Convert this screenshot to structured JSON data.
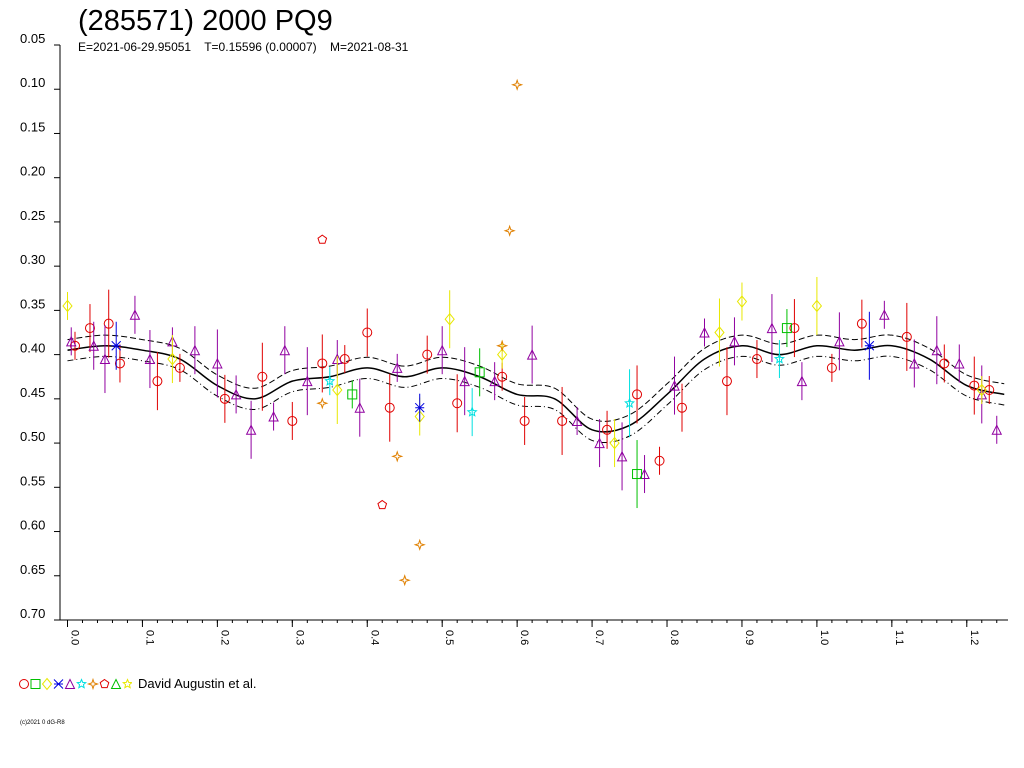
{
  "title": "(285571) 2000 PQ9",
  "subtitle": "E=2021-06-29.95051    T=0.15596 (0.00007)    M=2021-08-31",
  "legend": {
    "label": "David Augustin et al."
  },
  "copyright": "(c)2021 0 dG-R8",
  "colors": {
    "red": "#e00000",
    "green": "#00c000",
    "yellow": "#e8e800",
    "blue": "#0000e0",
    "purple": "#9000a0",
    "cyan": "#00e0e0",
    "orange": "#e08000",
    "fit": "#000000"
  },
  "chart_data": {
    "type": "scatter",
    "title": "(285571) 2000 PQ9",
    "subtitle": "E=2021-06-29.95051    T=0.15596 (0.00007)    M=2021-08-31",
    "xlim": [
      -0.01,
      1.255
    ],
    "ylim": [
      0.05,
      0.7
    ],
    "y_inverted": true,
    "xticks": [
      "0.0",
      "0.1",
      "0.2",
      "0.3",
      "0.4",
      "0.5",
      "0.6",
      "0.7",
      "0.8",
      "0.9",
      "1.0",
      "1.1",
      "1.2"
    ],
    "yticks": [
      "0.05",
      "0.10",
      "0.15",
      "0.20",
      "0.25",
      "0.30",
      "0.35",
      "0.40",
      "0.45",
      "0.50",
      "0.55",
      "0.60",
      "0.65",
      "0.70"
    ],
    "fit_curve": {
      "x": [
        0.0,
        0.05,
        0.1,
        0.15,
        0.2,
        0.25,
        0.3,
        0.35,
        0.4,
        0.45,
        0.5,
        0.55,
        0.6,
        0.65,
        0.7,
        0.75,
        0.8,
        0.85,
        0.9,
        0.95,
        1.0,
        1.05,
        1.1,
        1.15,
        1.2,
        1.25
      ],
      "y": [
        0.395,
        0.39,
        0.395,
        0.405,
        0.435,
        0.45,
        0.43,
        0.425,
        0.415,
        0.425,
        0.415,
        0.425,
        0.445,
        0.45,
        0.485,
        0.48,
        0.445,
        0.405,
        0.39,
        0.4,
        0.39,
        0.395,
        0.39,
        0.405,
        0.435,
        0.445
      ],
      "band": 0.012
    },
    "series": [
      {
        "marker": "circle",
        "color": "#e00000",
        "x": [
          0.01,
          0.03,
          0.055,
          0.07,
          0.12,
          0.15,
          0.21,
          0.26,
          0.3,
          0.34,
          0.37,
          0.4,
          0.43,
          0.48,
          0.52,
          0.58,
          0.61,
          0.66,
          0.72,
          0.76,
          0.79,
          0.82,
          0.88,
          0.92,
          0.97,
          1.02,
          1.06,
          1.12,
          1.17,
          1.21,
          1.23
        ],
        "y": [
          0.39,
          0.37,
          0.365,
          0.41,
          0.43,
          0.415,
          0.45,
          0.425,
          0.475,
          0.41,
          0.405,
          0.375,
          0.46,
          0.4,
          0.455,
          0.425,
          0.475,
          0.475,
          0.485,
          0.445,
          0.52,
          0.46,
          0.43,
          0.405,
          0.37,
          0.415,
          0.365,
          0.38,
          0.41,
          0.435,
          0.44
        ]
      },
      {
        "marker": "triangle",
        "color": "#9000a0",
        "x": [
          0.005,
          0.035,
          0.05,
          0.09,
          0.11,
          0.14,
          0.17,
          0.2,
          0.225,
          0.245,
          0.275,
          0.29,
          0.32,
          0.36,
          0.39,
          0.44,
          0.5,
          0.53,
          0.57,
          0.62,
          0.68,
          0.71,
          0.74,
          0.77,
          0.81,
          0.85,
          0.89,
          0.94,
          0.98,
          1.03,
          1.09,
          1.13,
          1.16,
          1.19,
          1.22,
          1.24
        ],
        "y": [
          0.385,
          0.39,
          0.405,
          0.355,
          0.405,
          0.385,
          0.395,
          0.41,
          0.445,
          0.485,
          0.47,
          0.395,
          0.43,
          0.405,
          0.46,
          0.415,
          0.395,
          0.43,
          0.43,
          0.4,
          0.475,
          0.5,
          0.515,
          0.535,
          0.435,
          0.375,
          0.385,
          0.37,
          0.43,
          0.385,
          0.355,
          0.41,
          0.395,
          0.41,
          0.445,
          0.485
        ]
      },
      {
        "marker": "diamond",
        "color": "#e8e800",
        "x": [
          0.0,
          0.14,
          0.36,
          0.47,
          0.51,
          0.58,
          0.73,
          0.87,
          0.9,
          1.0,
          1.22
        ],
        "y": [
          0.345,
          0.405,
          0.44,
          0.47,
          0.36,
          0.4,
          0.5,
          0.375,
          0.34,
          0.345,
          0.44
        ]
      },
      {
        "marker": "square",
        "color": "#00c000",
        "x": [
          0.38,
          0.55,
          0.76,
          0.96
        ],
        "y": [
          0.445,
          0.42,
          0.535,
          0.37
        ]
      },
      {
        "marker": "star",
        "color": "#00e0e0",
        "x": [
          0.35,
          0.54,
          0.75,
          0.95
        ],
        "y": [
          0.43,
          0.465,
          0.455,
          0.405
        ]
      },
      {
        "marker": "cross",
        "color": "#0000e0",
        "x": [
          0.47,
          0.065,
          1.07
        ],
        "y": [
          0.46,
          0.39,
          0.39
        ]
      },
      {
        "marker": "sparkle",
        "color": "#e08000",
        "x": [
          0.44,
          0.45,
          0.47,
          0.58,
          0.59,
          0.6,
          0.34
        ],
        "y": [
          0.515,
          0.655,
          0.615,
          0.39,
          0.26,
          0.095,
          0.455
        ]
      },
      {
        "marker": "pentagon",
        "color": "#e00000",
        "x": [
          0.34,
          0.42
        ],
        "y": [
          0.27,
          0.57
        ]
      }
    ]
  }
}
